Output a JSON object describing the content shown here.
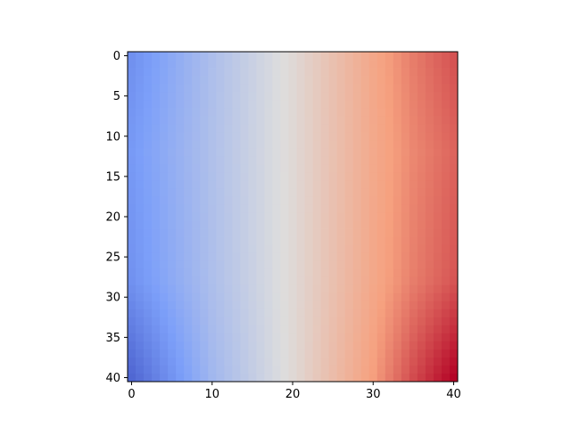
{
  "chart_data": {
    "type": "heatmap",
    "title": "",
    "xlabel": "",
    "ylabel": "",
    "colormap": "coolwarm",
    "rows": 41,
    "cols": 41,
    "xlim": [
      -0.5,
      40.5
    ],
    "ylim": [
      40.5,
      -0.5
    ],
    "x_ticks": [
      0,
      10,
      20,
      30,
      40
    ],
    "y_ticks": [
      0,
      5,
      10,
      15,
      20,
      25,
      30,
      35,
      40
    ],
    "x_tick_labels": [
      "0",
      "10",
      "20",
      "30",
      "40"
    ],
    "y_tick_labels": [
      "0",
      "5",
      "10",
      "15",
      "20",
      "25",
      "30",
      "35",
      "40"
    ],
    "grid": false,
    "value_range": [
      0.0,
      1.0
    ],
    "column_profile": [
      {
        "col": 0,
        "value": 0.22
      },
      {
        "col": 5,
        "value": 0.3
      },
      {
        "col": 10,
        "value": 0.38
      },
      {
        "col": 15,
        "value": 0.45
      },
      {
        "col": 20,
        "value": 0.52
      },
      {
        "col": 25,
        "value": 0.62
      },
      {
        "col": 30,
        "value": 0.72
      },
      {
        "col": 35,
        "value": 0.8
      },
      {
        "col": 40,
        "value": 0.86
      }
    ],
    "row_profile": [
      {
        "row": 0,
        "value": 0.03
      },
      {
        "row": 6,
        "value": 0.0
      },
      {
        "row": 12,
        "value": -0.03
      },
      {
        "row": 18,
        "value": -0.01
      },
      {
        "row": 26,
        "value": 0.01
      },
      {
        "row": 33,
        "value": 0.05
      },
      {
        "row": 40,
        "value": 0.1
      }
    ],
    "edge_profile": [
      {
        "col": 0,
        "value": 0.5
      },
      {
        "col": 10,
        "value": 0.12
      },
      {
        "col": 20,
        "value": 0.0
      },
      {
        "col": 30,
        "value": 0.12
      },
      {
        "col": 40,
        "value": 0.5
      }
    ]
  }
}
